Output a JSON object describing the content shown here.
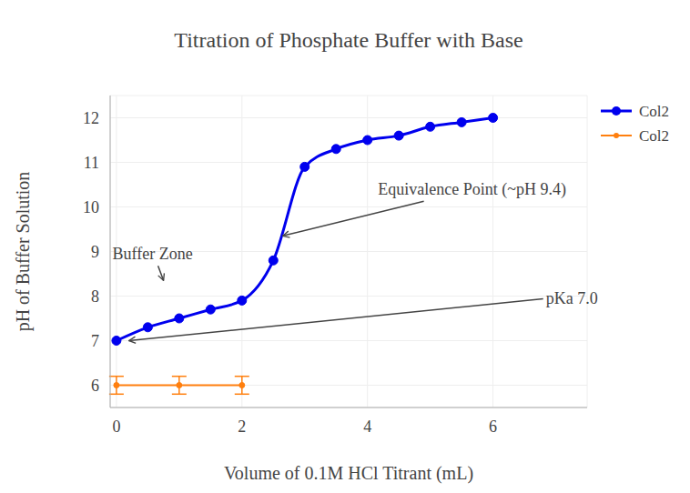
{
  "chart_data": {
    "type": "line",
    "title": "Titration of Phosphate Buffer with Base",
    "x_label": "Volume of 0.1M HCl Titrant (mL)",
    "y_label": "pH of Buffer Solution",
    "xlim": [
      -0.1,
      7.5
    ],
    "ylim": [
      5.5,
      12.5
    ],
    "xticks": [
      0,
      2,
      4,
      6
    ],
    "yticks": [
      6,
      7,
      8,
      9,
      10,
      11,
      12
    ],
    "grid": true,
    "legend": "top-right",
    "series": [
      {
        "name": "Col2",
        "color": "#0000ee",
        "marker": "circle",
        "line_style": "spline",
        "x": [
          0,
          0.5,
          1,
          1.5,
          2,
          2.5,
          3,
          3.5,
          4,
          4.5,
          5,
          5.5,
          6
        ],
        "values": [
          7.0,
          7.3,
          7.5,
          7.7,
          7.9,
          8.8,
          10.9,
          11.3,
          11.5,
          11.6,
          11.8,
          11.9,
          12.0
        ]
      },
      {
        "name": "Col2",
        "color": "#ff7f0e",
        "marker": "circle",
        "line_style": "solid",
        "x": [
          0,
          1,
          2
        ],
        "values": [
          6,
          6,
          6
        ],
        "error": [
          0.2,
          0.2,
          0.2
        ]
      }
    ],
    "annotations": [
      {
        "text": "Buffer Zone",
        "x": 0.75,
        "y": 8.35
      },
      {
        "text": "Equivalence Point (~pH 9.4)",
        "x": 2.65,
        "y": 9.35
      },
      {
        "text": "pKa 7.0",
        "x": 0.2,
        "y": 7.0
      }
    ]
  }
}
